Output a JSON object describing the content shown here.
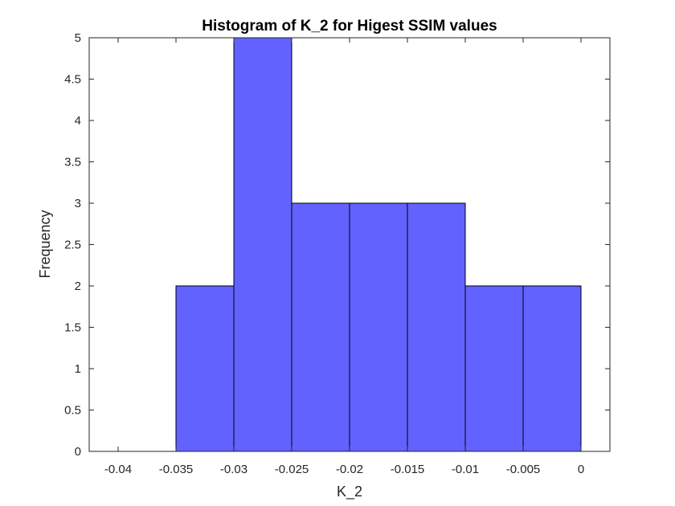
{
  "chart_data": {
    "type": "bar",
    "title": "Histogram of K_2 for Higest SSIM values",
    "xlabel": "K_2",
    "ylabel": "Frequency",
    "xlim": [
      -0.0425,
      0.0025
    ],
    "ylim": [
      0,
      5
    ],
    "bin_edges": [
      -0.035,
      -0.03,
      -0.025,
      -0.02,
      -0.015,
      -0.01,
      -0.005,
      0
    ],
    "values": [
      2,
      5,
      3,
      3,
      3,
      2,
      2
    ],
    "x_ticks": [
      -0.04,
      -0.035,
      -0.03,
      -0.025,
      -0.02,
      -0.015,
      -0.01,
      -0.005,
      0
    ],
    "x_tick_labels": [
      "-0.04",
      "-0.035",
      "-0.03",
      "-0.025",
      "-0.02",
      "-0.015",
      "-0.01",
      "-0.005",
      "0"
    ],
    "y_ticks": [
      0,
      0.5,
      1,
      1.5,
      2,
      2.5,
      3,
      3.5,
      4,
      4.5,
      5
    ],
    "y_tick_labels": [
      "0",
      "0.5",
      "1",
      "1.5",
      "2",
      "2.5",
      "3",
      "3.5",
      "4",
      "4.5",
      "5"
    ],
    "grid": false,
    "legend": "none",
    "bar_color": "#6262ff",
    "edge_color": "#000000"
  }
}
